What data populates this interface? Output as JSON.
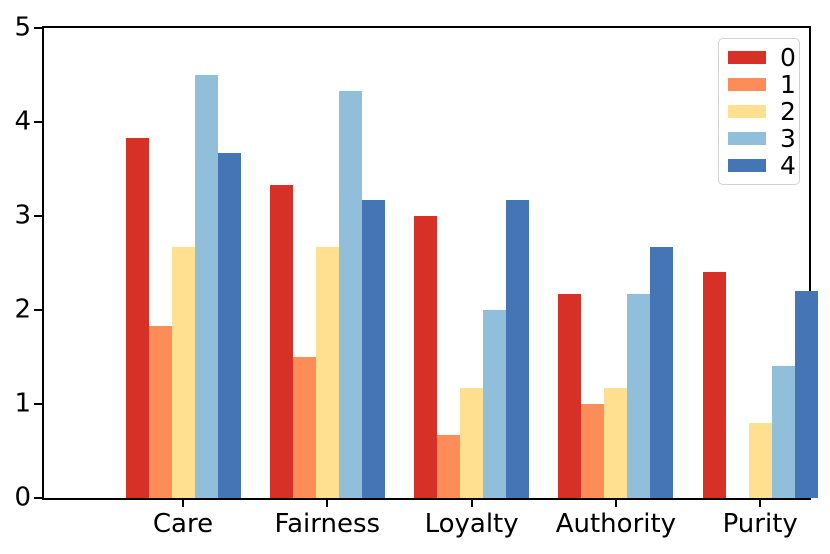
{
  "chart_data": {
    "type": "bar",
    "title": "",
    "xlabel": "",
    "ylabel": "",
    "categories": [
      "Care",
      "Fairness",
      "Loyalty",
      "Authority",
      "Purity"
    ],
    "series": [
      {
        "name": "0",
        "color": "#d73027",
        "values": [
          3.83,
          3.33,
          3.0,
          2.17,
          2.4
        ]
      },
      {
        "name": "1",
        "color": "#fc8d59",
        "values": [
          1.83,
          1.5,
          0.67,
          1.0,
          0.0
        ]
      },
      {
        "name": "2",
        "color": "#fee090",
        "values": [
          2.67,
          2.67,
          1.17,
          1.17,
          0.8
        ]
      },
      {
        "name": "3",
        "color": "#91bfdb",
        "values": [
          4.5,
          4.33,
          2.0,
          2.17,
          1.4
        ]
      },
      {
        "name": "4",
        "color": "#4575b4",
        "values": [
          3.67,
          3.17,
          3.17,
          2.67,
          2.2
        ]
      }
    ],
    "ylim": [
      0,
      5
    ],
    "yticks": [
      0,
      1,
      2,
      3,
      4,
      5
    ],
    "grid": false,
    "legend_position": "upper right",
    "legend_labels": [
      "0",
      "1",
      "2",
      "3",
      "4"
    ],
    "axis_color": "#000000",
    "background_color": "#ffffff"
  }
}
